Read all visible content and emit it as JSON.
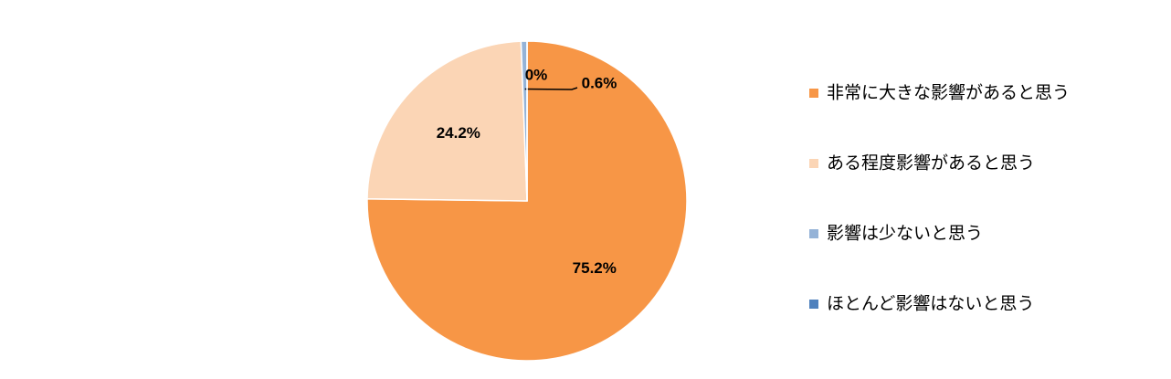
{
  "chart_data": {
    "type": "pie",
    "categories": [
      "非常に大きな影響があると思う",
      "ある程度影響があると思う",
      "影響は少ないと思う",
      "ほとんど影響はないと思う"
    ],
    "values": [
      75.2,
      24.2,
      0.6,
      0
    ],
    "value_labels": [
      "75.2%",
      "24.2%",
      "0.6%",
      "0%"
    ],
    "colors": [
      "#f79646",
      "#fbd5b5",
      "#95b3d7",
      "#4f81bd"
    ],
    "legend": "right"
  }
}
